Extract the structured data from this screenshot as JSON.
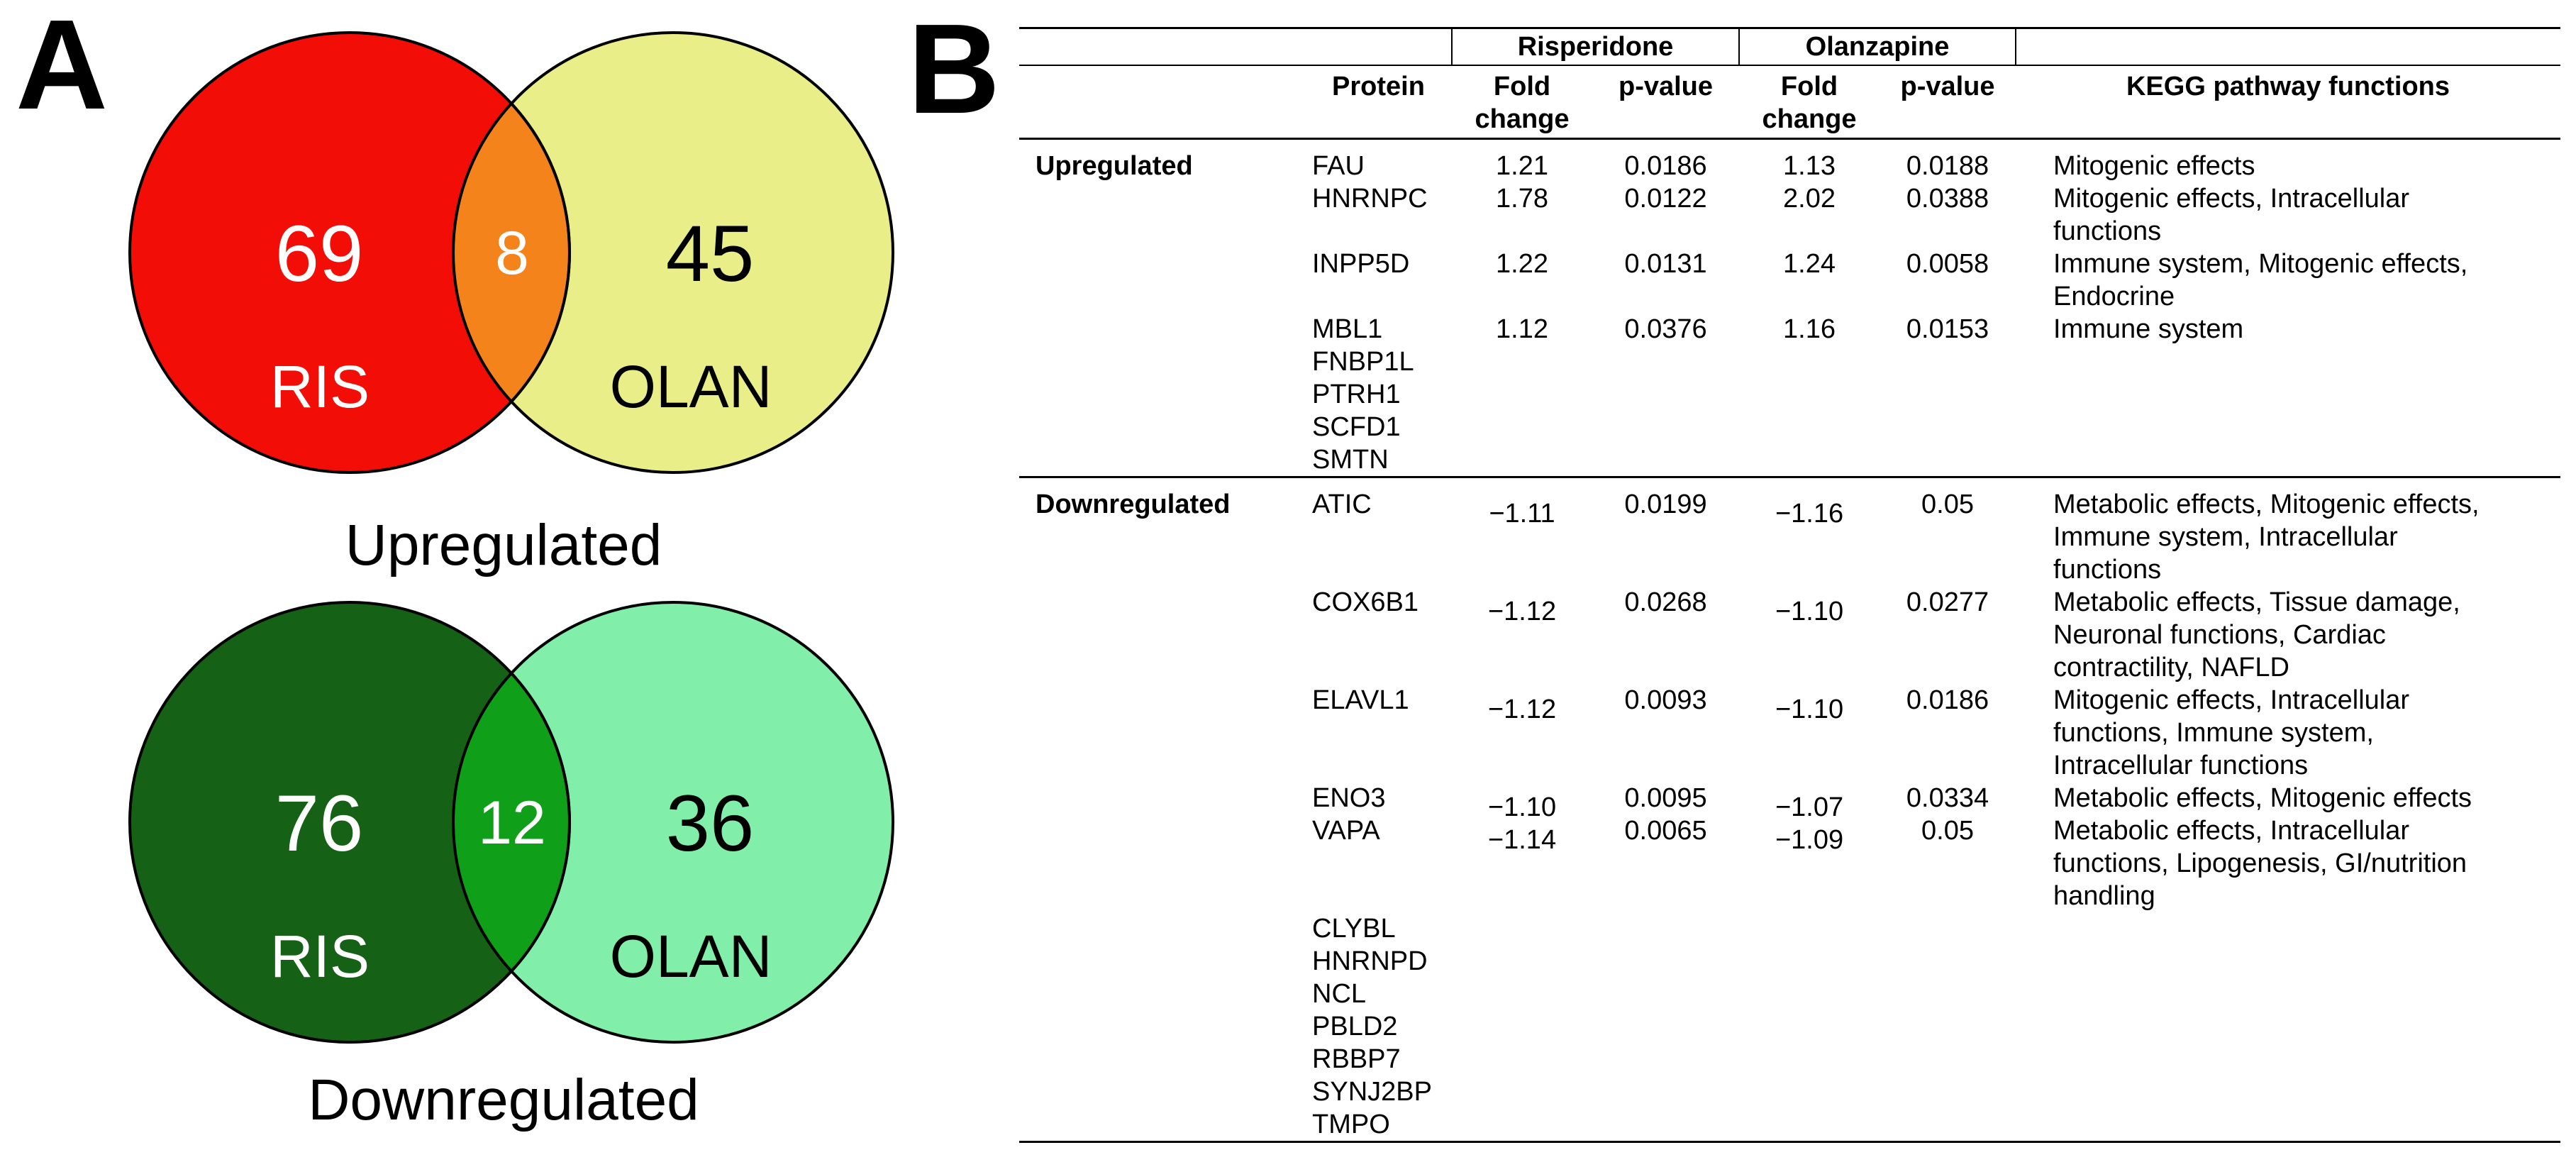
{
  "panel_a": {
    "label": "A",
    "diagrams": [
      {
        "caption": "Upregulated",
        "left_count": "69",
        "left_label": "RIS",
        "overlap_count": "8",
        "right_count": "45",
        "right_label": "OLAN",
        "left_color": "#f20d07",
        "overlap_color": "#f5831c",
        "right_color": "#e9ee88",
        "left_text_color": "#ffffff",
        "overlap_text_color": "#ffffff",
        "right_text_color": "#000000"
      },
      {
        "caption": "Downregulated",
        "left_count": "76",
        "left_label": "RIS",
        "overlap_count": "12",
        "right_count": "36",
        "right_label": "OLAN",
        "left_color": "#156115",
        "overlap_color": "#0f9f18",
        "right_color": "#81efa9",
        "left_text_color": "#ffffff",
        "overlap_text_color": "#ffffff",
        "right_text_color": "#000000"
      }
    ]
  },
  "panel_b": {
    "label": "B",
    "table": {
      "group_headers": [
        {
          "label": "Risperidone"
        },
        {
          "label": "Olanzapine"
        }
      ],
      "columns": {
        "protein": "Protein",
        "fold_change": "Fold change",
        "p_value": "p-value",
        "kegg": "KEGG pathway functions"
      },
      "sections": [
        {
          "category": "Upregulated",
          "rows": [
            {
              "protein": "FAU",
              "ris_fold": "1.21",
              "ris_p": "0.0186",
              "olan_fold": "1.13",
              "olan_p": "0.0188",
              "kegg": "Mitogenic effects"
            },
            {
              "protein": "HNRNPC",
              "ris_fold": "1.78",
              "ris_p": "0.0122",
              "olan_fold": "2.02",
              "olan_p": "0.0388",
              "kegg": "Mitogenic effects, Intracellular functions"
            },
            {
              "protein": "INPP5D",
              "ris_fold": "1.22",
              "ris_p": "0.0131",
              "olan_fold": "1.24",
              "olan_p": "0.0058",
              "kegg": "Immune system, Mitogenic effects, Endocrine"
            },
            {
              "protein": "MBL1",
              "ris_fold": "1.12",
              "ris_p": "0.0376",
              "olan_fold": "1.16",
              "olan_p": "0.0153",
              "kegg": "Immune system"
            },
            {
              "protein": "FNBP1L",
              "ris_fold": "",
              "ris_p": "",
              "olan_fold": "",
              "olan_p": "",
              "kegg": ""
            },
            {
              "protein": "PTRH1",
              "ris_fold": "",
              "ris_p": "",
              "olan_fold": "",
              "olan_p": "",
              "kegg": ""
            },
            {
              "protein": "SCFD1",
              "ris_fold": "",
              "ris_p": "",
              "olan_fold": "",
              "olan_p": "",
              "kegg": ""
            },
            {
              "protein": "SMTN",
              "ris_fold": "",
              "ris_p": "",
              "olan_fold": "",
              "olan_p": "",
              "kegg": ""
            }
          ]
        },
        {
          "category": "Downregulated",
          "rows": [
            {
              "protein": "ATIC",
              "ris_fold": "−1.11",
              "ris_p": "0.0199",
              "olan_fold": "−1.16",
              "olan_p": "0.05",
              "kegg": "Metabolic effects, Mitogenic effects, Immune system, Intracellular functions"
            },
            {
              "protein": "COX6B1",
              "ris_fold": "−1.12",
              "ris_p": "0.0268",
              "olan_fold": "−1.10",
              "olan_p": "0.0277",
              "kegg": "Metabolic effects, Tissue damage, Neuronal functions, Cardiac contractility, NAFLD"
            },
            {
              "protein": "ELAVL1",
              "ris_fold": "−1.12",
              "ris_p": "0.0093",
              "olan_fold": "−1.10",
              "olan_p": "0.0186",
              "kegg": "Mitogenic effects, Intracellular functions, Immune system, Intracellular functions"
            },
            {
              "protein": "ENO3",
              "ris_fold": "−1.10",
              "ris_p": "0.0095",
              "olan_fold": "−1.07",
              "olan_p": "0.0334",
              "kegg": "Metabolic effects, Mitogenic effects"
            },
            {
              "protein": "VAPA",
              "ris_fold": "−1.14",
              "ris_p": "0.0065",
              "olan_fold": "−1.09",
              "olan_p": "0.05",
              "kegg": "Metabolic effects, Intracellular functions, Lipogenesis, GI/nutrition handling"
            },
            {
              "protein": "CLYBL",
              "ris_fold": "",
              "ris_p": "",
              "olan_fold": "",
              "olan_p": "",
              "kegg": ""
            },
            {
              "protein": "HNRNPD",
              "ris_fold": "",
              "ris_p": "",
              "olan_fold": "",
              "olan_p": "",
              "kegg": ""
            },
            {
              "protein": "NCL",
              "ris_fold": "",
              "ris_p": "",
              "olan_fold": "",
              "olan_p": "",
              "kegg": ""
            },
            {
              "protein": "PBLD2",
              "ris_fold": "",
              "ris_p": "",
              "olan_fold": "",
              "olan_p": "",
              "kegg": ""
            },
            {
              "protein": "RBBP7",
              "ris_fold": "",
              "ris_p": "",
              "olan_fold": "",
              "olan_p": "",
              "kegg": ""
            },
            {
              "protein": "SYNJ2BP",
              "ris_fold": "",
              "ris_p": "",
              "olan_fold": "",
              "olan_p": "",
              "kegg": ""
            },
            {
              "protein": "TMPO",
              "ris_fold": "",
              "ris_p": "",
              "olan_fold": "",
              "olan_p": "",
              "kegg": ""
            }
          ]
        }
      ]
    }
  }
}
